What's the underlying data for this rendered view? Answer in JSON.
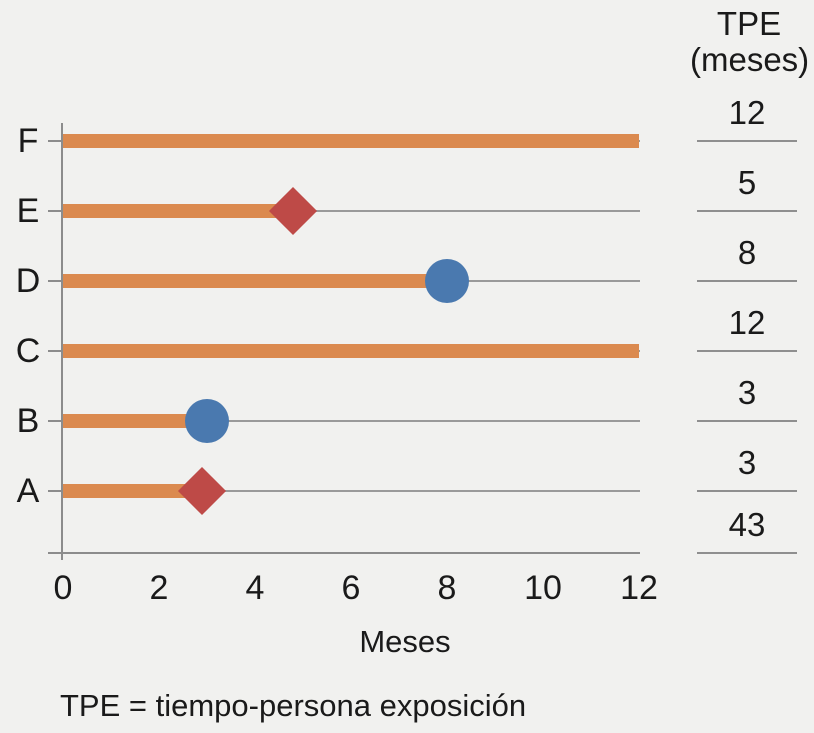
{
  "colors": {
    "background": "#F1F1EF",
    "bar_orange": "#DB8A4F",
    "marker_blue": "#4A79AF",
    "marker_red": "#BE4A47",
    "axis_gray": "#8c8c8c",
    "grid_gray": "#9a9a9a",
    "text": "#1a1a1a"
  },
  "chart_data": {
    "type": "bar",
    "orientation": "horizontal",
    "title": "",
    "xlabel": "Meses",
    "ylabel": "",
    "xlim": [
      0,
      12
    ],
    "x_ticks": [
      0,
      2,
      4,
      6,
      8,
      10,
      12
    ],
    "grid": true,
    "legend_position": "none",
    "rows": [
      {
        "label": "F",
        "bar_end": 12,
        "marker": "none",
        "tpe": "12"
      },
      {
        "label": "E",
        "bar_end": 4.8,
        "marker": "diamond",
        "tpe": "5"
      },
      {
        "label": "D",
        "bar_end": 8,
        "marker": "circle",
        "tpe": "8"
      },
      {
        "label": "C",
        "bar_end": 12,
        "marker": "none",
        "tpe": "12"
      },
      {
        "label": "B",
        "bar_end": 3,
        "marker": "circle",
        "tpe": "3"
      },
      {
        "label": "A",
        "bar_end": 2.9,
        "marker": "diamond",
        "tpe": "3"
      }
    ],
    "tpe_total": "43",
    "marker_legend": {
      "diamond_color_hex": "#BE4A47",
      "circle_color_hex": "#4A79AF",
      "bar_color_hex": "#DB8A4F"
    }
  },
  "tpe_column": {
    "header_line1": "TPE",
    "header_line2": "(meses)"
  },
  "footnote": "TPE = tiempo-persona exposición"
}
